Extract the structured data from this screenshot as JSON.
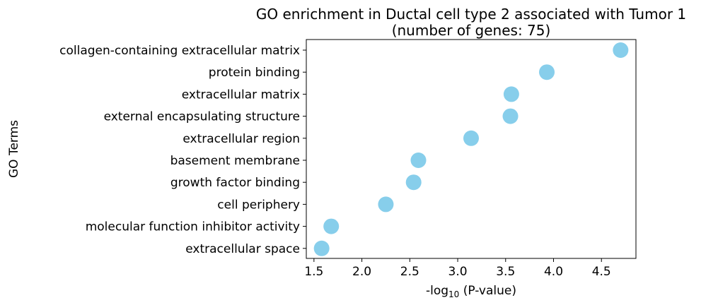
{
  "chart_data": {
    "type": "scatter",
    "title": "GO enrichment in Ductal cell type 2 associated with Tumor 1",
    "subtitle": "(number of genes: 75)",
    "xlabel": {
      "prefix": "-log",
      "subscript": "10",
      "suffix": " (P-value)"
    },
    "ylabel": "GO Terms",
    "xlim": [
      1.42,
      4.86
    ],
    "xticks": [
      1.5,
      2.0,
      2.5,
      3.0,
      3.5,
      4.0,
      4.5
    ],
    "xtick_labels": [
      "1.5",
      "2.0",
      "2.5",
      "3.0",
      "3.5",
      "4.0",
      "4.5"
    ],
    "grid": false,
    "marker_color": "#87ceeb",
    "points": [
      {
        "term": "collagen-containing extracellular matrix",
        "x": 4.7
      },
      {
        "term": "protein binding",
        "x": 3.93
      },
      {
        "term": "extracellular matrix",
        "x": 3.56
      },
      {
        "term": "external encapsulating structure",
        "x": 3.55
      },
      {
        "term": "extracellular region",
        "x": 3.14
      },
      {
        "term": "basement membrane",
        "x": 2.59
      },
      {
        "term": "growth factor binding",
        "x": 2.54
      },
      {
        "term": "cell periphery",
        "x": 2.25
      },
      {
        "term": "molecular function inhibitor activity",
        "x": 1.68
      },
      {
        "term": "extracellular space",
        "x": 1.58
      }
    ]
  }
}
